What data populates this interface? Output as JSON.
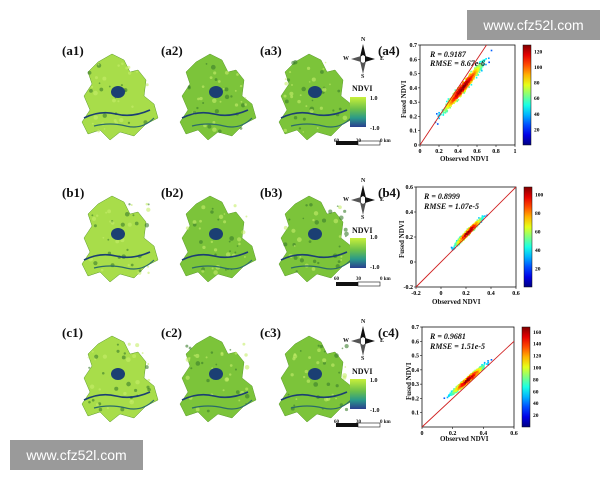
{
  "watermark": {
    "top": "www.cfz52l.com",
    "bottom": "www.cfz52l.com"
  },
  "rows": [
    {
      "labels": [
        "(a1)",
        "(a2)",
        "(a3)",
        "(a4)"
      ]
    },
    {
      "labels": [
        "(b1)",
        "(b2)",
        "(b3)",
        "(b4)"
      ]
    },
    {
      "labels": [
        "(c1)",
        "(c2)",
        "(c3)",
        "(c4)"
      ]
    }
  ],
  "legend": {
    "title": "NDVI",
    "max": "1.0",
    "min": "-1.0",
    "scale_labels": [
      "60",
      "30",
      "0 km"
    ],
    "compass": {
      "n": "N",
      "s": "S",
      "w": "W",
      "e": "E"
    }
  },
  "colors": {
    "map_light": "#a8dd4a",
    "map_mid": "#7cc43a",
    "map_dark": "#3a7d2c",
    "water": "#1b3f73",
    "regression_line": "#d02020"
  },
  "chart_data": [
    {
      "type": "scatter",
      "panel": "(a4)",
      "title": "",
      "xlabel": "Observed NDVI",
      "ylabel": "Fused NDVI",
      "stats": [
        "R = 0.9187",
        "RMSE = 8.67e-6"
      ],
      "xlim": [
        0,
        1
      ],
      "ylim": [
        0,
        0.7
      ],
      "xticks": [
        "0",
        "0.2",
        "0.4",
        "0.6",
        "0.8",
        "1"
      ],
      "yticks": [
        "0",
        "0.1",
        "0.2",
        "0.3",
        "0.4",
        "0.5",
        "0.6",
        "0.7"
      ],
      "colorbar_ticks": [
        "20",
        "40",
        "60",
        "80",
        "100",
        "120"
      ],
      "density_center": [
        0.45,
        0.4
      ],
      "spread": [
        0.2,
        0.16
      ]
    },
    {
      "type": "scatter",
      "panel": "(b4)",
      "title": "",
      "xlabel": "Observed NDVI",
      "ylabel": "Fused NDVI",
      "stats": [
        "R = 0.8999",
        "RMSE = 1.07e-5"
      ],
      "xlim": [
        -0.2,
        0.6
      ],
      "ylim": [
        -0.2,
        0.6
      ],
      "xticks": [
        "-0.2",
        "0",
        "0.2",
        "0.4",
        "0.6"
      ],
      "yticks": [
        "-0.2",
        "0",
        "0.2",
        "0.4",
        "0.6"
      ],
      "colorbar_ticks": [
        "20",
        "40",
        "60",
        "80",
        "100"
      ],
      "density_center": [
        0.22,
        0.24
      ],
      "spread": [
        0.1,
        0.1
      ]
    },
    {
      "type": "scatter",
      "panel": "(c4)",
      "title": "",
      "xlabel": "Observed NDVI",
      "ylabel": "Fused NDVI",
      "stats": [
        "R = 0.9681",
        "RMSE = 1.51e-5"
      ],
      "xlim": [
        0,
        0.6
      ],
      "ylim": [
        0,
        0.7
      ],
      "xticks": [
        "0",
        "0.2",
        "0.4",
        "0.6"
      ],
      "yticks": [
        "0.1",
        "0.2",
        "0.3",
        "0.4",
        "0.5",
        "0.6",
        "0.7"
      ],
      "colorbar_ticks": [
        "20",
        "40",
        "60",
        "80",
        "100",
        "120",
        "140",
        "160"
      ],
      "density_center": [
        0.3,
        0.33
      ],
      "spread": [
        0.1,
        0.09
      ]
    }
  ]
}
